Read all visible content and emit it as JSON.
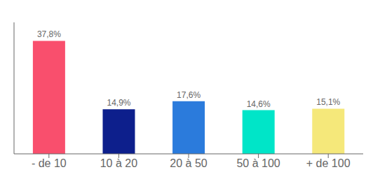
{
  "chart_data": {
    "type": "bar",
    "categories": [
      "- de 10",
      "10 à 20",
      "20 à 50",
      "50 à 100",
      "+ de 100"
    ],
    "values": [
      37.8,
      14.9,
      17.6,
      14.6,
      15.1
    ],
    "value_labels": [
      "37,8%",
      "14,9%",
      "17,6%",
      "14,6%",
      "15,1%"
    ],
    "colors": [
      "#f94f6d",
      "#0d1f8c",
      "#2b7bdc",
      "#00e5c8",
      "#f5e87a"
    ],
    "ylim": [
      0,
      44
    ],
    "data_labels": true,
    "tick_labels": "x",
    "grid": false
  }
}
